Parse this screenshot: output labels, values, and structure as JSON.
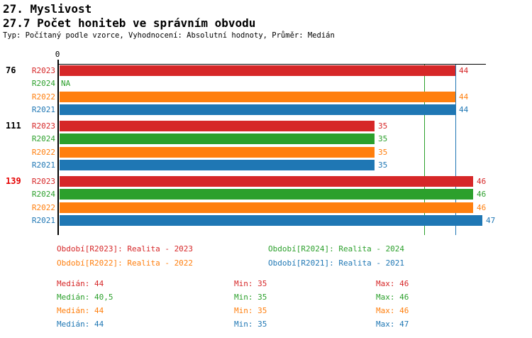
{
  "header": {
    "title": "27. Myslivost",
    "subtitle": "27.7 Počet honiteb ve správním obvodu",
    "meta": "Typ: Počítaný podle vzorce, Vyhodnocení: Absolutní hodnoty, Průměr: Medián"
  },
  "colors": {
    "R2023": "#d62728",
    "R2024": "#2ca02c",
    "R2022": "#ff7f0e",
    "R2021": "#1f77b4",
    "axis": "#000000",
    "group_label_highlight": "#e60000"
  },
  "chart_data": {
    "type": "bar",
    "orientation": "horizontal",
    "title": "27.7 Počet honiteb ve správním obvodu",
    "xlabel": "",
    "ylabel": "",
    "xlim": [
      0,
      47.5
    ],
    "x_tick_labels": [
      "0"
    ],
    "grid": false,
    "series_order": [
      "R2023",
      "R2024",
      "R2022",
      "R2021"
    ],
    "groups": [
      {
        "label": "76",
        "label_color": "#000000",
        "values": {
          "R2023": 44,
          "R2024": null,
          "R2022": 44,
          "R2021": 44
        },
        "na_text": "NA"
      },
      {
        "label": "111",
        "label_color": "#000000",
        "values": {
          "R2023": 35,
          "R2024": 35,
          "R2022": 35,
          "R2021": 35
        }
      },
      {
        "label": "139",
        "label_color": "#e60000",
        "values": {
          "R2023": 46,
          "R2024": 46,
          "R2022": 46,
          "R2021": 47
        }
      }
    ],
    "reference_lines": [
      {
        "value": 40.5,
        "series": "R2024",
        "color": "#2ca02c"
      },
      {
        "value": 44,
        "series": "R2021",
        "color": "#1f77b4"
      }
    ]
  },
  "legend": {
    "items": [
      {
        "series": "R2023",
        "text": "Období[R2023]: Realita - 2023"
      },
      {
        "series": "R2024",
        "text": "Období[R2024]: Realita - 2024"
      },
      {
        "series": "R2022",
        "text": "Období[R2022]: Realita - 2022"
      },
      {
        "series": "R2021",
        "text": "Období[R2021]: Realita - 2021"
      }
    ]
  },
  "stats": {
    "labels": {
      "median": "Medián",
      "min": "Min",
      "max": "Max"
    },
    "rows": [
      {
        "series": "R2023",
        "median": "44",
        "min": "35",
        "max": "46"
      },
      {
        "series": "R2024",
        "median": "40,5",
        "min": "35",
        "max": "46"
      },
      {
        "series": "R2022",
        "median": "44",
        "min": "35",
        "max": "46"
      },
      {
        "series": "R2021",
        "median": "44",
        "min": "35",
        "max": "47"
      }
    ]
  }
}
